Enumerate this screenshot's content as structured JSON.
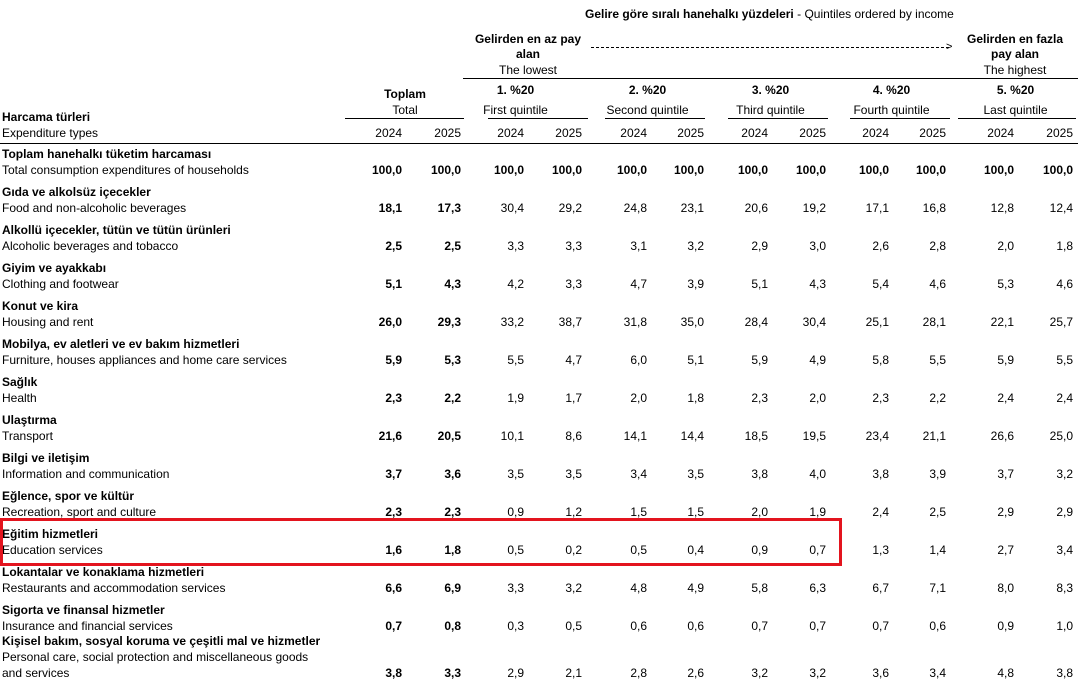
{
  "header": {
    "group_title_tr": "Gelire göre sıralı hanehalkı yüzdeleri",
    "group_title_sep": " - ",
    "group_title_en": "Quintiles ordered by income",
    "lowest_tr_1": "Gelirden en az pay",
    "lowest_tr_2": "alan",
    "lowest_en": "The lowest",
    "highest_tr_1": "Gelirden en fazla",
    "highest_tr_2": "pay alan",
    "highest_en": "The highest",
    "arrow_glyph": ">",
    "total_tr": "Toplam",
    "total_en": "Total",
    "row_label_tr": "Harcama türleri",
    "row_label_en": "Expenditure types",
    "quintiles": [
      {
        "tr": "1. %20",
        "en": "First quintile"
      },
      {
        "tr": "2. %20",
        "en": "Second quintile"
      },
      {
        "tr": "3. %20",
        "en": "Third quintile"
      },
      {
        "tr": "4. %20",
        "en": "Fourth quintile"
      },
      {
        "tr": "5. %20",
        "en": "Last quintile"
      }
    ],
    "years": [
      "2024",
      "2025"
    ]
  },
  "rows": [
    {
      "tr": "Toplam hanehalkı tüketim harcaması",
      "en": "Total consumption expenditures of households",
      "values": [
        "100,0",
        "100,0",
        "100,0",
        "100,0",
        "100,0",
        "100,0",
        "100,0",
        "100,0",
        "100,0",
        "100,0",
        "100,0",
        "100,0"
      ]
    },
    {
      "tr": "Gıda ve alkolsüz içecekler",
      "en": "Food and non-alcoholic beverages",
      "values": [
        "18,1",
        "17,3",
        "30,4",
        "29,2",
        "24,8",
        "23,1",
        "20,6",
        "19,2",
        "17,1",
        "16,8",
        "12,8",
        "12,4"
      ]
    },
    {
      "tr": "Alkollü içecekler, tütün ve tütün ürünleri",
      "en": "Alcoholic beverages and tobacco",
      "values": [
        "2,5",
        "2,5",
        "3,3",
        "3,3",
        "3,1",
        "3,2",
        "2,9",
        "3,0",
        "2,6",
        "2,8",
        "2,0",
        "1,8"
      ]
    },
    {
      "tr": "Giyim ve ayakkabı",
      "en": "Clothing and footwear",
      "values": [
        "5,1",
        "4,3",
        "4,2",
        "3,3",
        "4,7",
        "3,9",
        "5,1",
        "4,3",
        "5,4",
        "4,6",
        "5,3",
        "4,6"
      ]
    },
    {
      "tr": "Konut ve kira",
      "en": "Housing and rent",
      "values": [
        "26,0",
        "29,3",
        "33,2",
        "38,7",
        "31,8",
        "35,0",
        "28,4",
        "30,4",
        "25,1",
        "28,1",
        "22,1",
        "25,7"
      ]
    },
    {
      "tr": "Mobilya, ev aletleri ve ev bakım hizmetleri",
      "en": "Furniture, houses appliances and home care services",
      "values": [
        "5,9",
        "5,3",
        "5,5",
        "4,7",
        "6,0",
        "5,1",
        "5,9",
        "4,9",
        "5,8",
        "5,5",
        "5,9",
        "5,5"
      ]
    },
    {
      "tr": "Sağlık",
      "en": "Health",
      "values": [
        "2,3",
        "2,2",
        "1,9",
        "1,7",
        "2,0",
        "1,8",
        "2,3",
        "2,0",
        "2,3",
        "2,2",
        "2,4",
        "2,4"
      ]
    },
    {
      "tr": "Ulaştırma",
      "en": "Transport",
      "values": [
        "21,6",
        "20,5",
        "10,1",
        "8,6",
        "14,1",
        "14,4",
        "18,5",
        "19,5",
        "23,4",
        "21,1",
        "26,6",
        "25,0"
      ]
    },
    {
      "tr": "Bilgi ve iletişim",
      "en": "Information and communication",
      "values": [
        "3,7",
        "3,6",
        "3,5",
        "3,5",
        "3,4",
        "3,5",
        "3,8",
        "4,0",
        "3,8",
        "3,9",
        "3,7",
        "3,2"
      ]
    },
    {
      "tr": "Eğlence, spor ve kültür",
      "en": "Recreation, sport and culture",
      "values": [
        "2,3",
        "2,3",
        "0,9",
        "1,2",
        "1,5",
        "1,5",
        "2,0",
        "1,9",
        "2,4",
        "2,5",
        "2,9",
        "2,9"
      ]
    },
    {
      "tr": "Eğitim hizmetleri",
      "en": "Education services",
      "values": [
        "1,6",
        "1,8",
        "0,5",
        "0,2",
        "0,5",
        "0,4",
        "0,9",
        "0,7",
        "1,3",
        "1,4",
        "2,7",
        "3,4"
      ]
    },
    {
      "tr": "Lokantalar ve konaklama hizmetleri",
      "en": "Restaurants and accommodation services",
      "values": [
        "6,6",
        "6,9",
        "3,3",
        "3,2",
        "4,8",
        "4,9",
        "5,8",
        "6,3",
        "6,7",
        "7,1",
        "8,0",
        "8,3"
      ]
    },
    {
      "tr": "Sigorta ve finansal hizmetler",
      "en": "Insurance and financial services",
      "values": [
        "0,7",
        "0,8",
        "0,3",
        "0,5",
        "0,6",
        "0,6",
        "0,7",
        "0,7",
        "0,7",
        "0,6",
        "0,9",
        "1,0"
      ]
    },
    {
      "tr": "Kişisel bakım, sosyal koruma ve çeşitli mal ve hizmetler",
      "en": "Personal care, social protection and miscellaneous goods",
      "en2": "and services",
      "values": [
        "3,8",
        "3,3",
        "2,9",
        "2,1",
        "2,8",
        "2,6",
        "3,2",
        "3,2",
        "3,6",
        "3,4",
        "4,8",
        "3,8"
      ]
    }
  ],
  "colors": {
    "highlight": "#e3141e"
  }
}
